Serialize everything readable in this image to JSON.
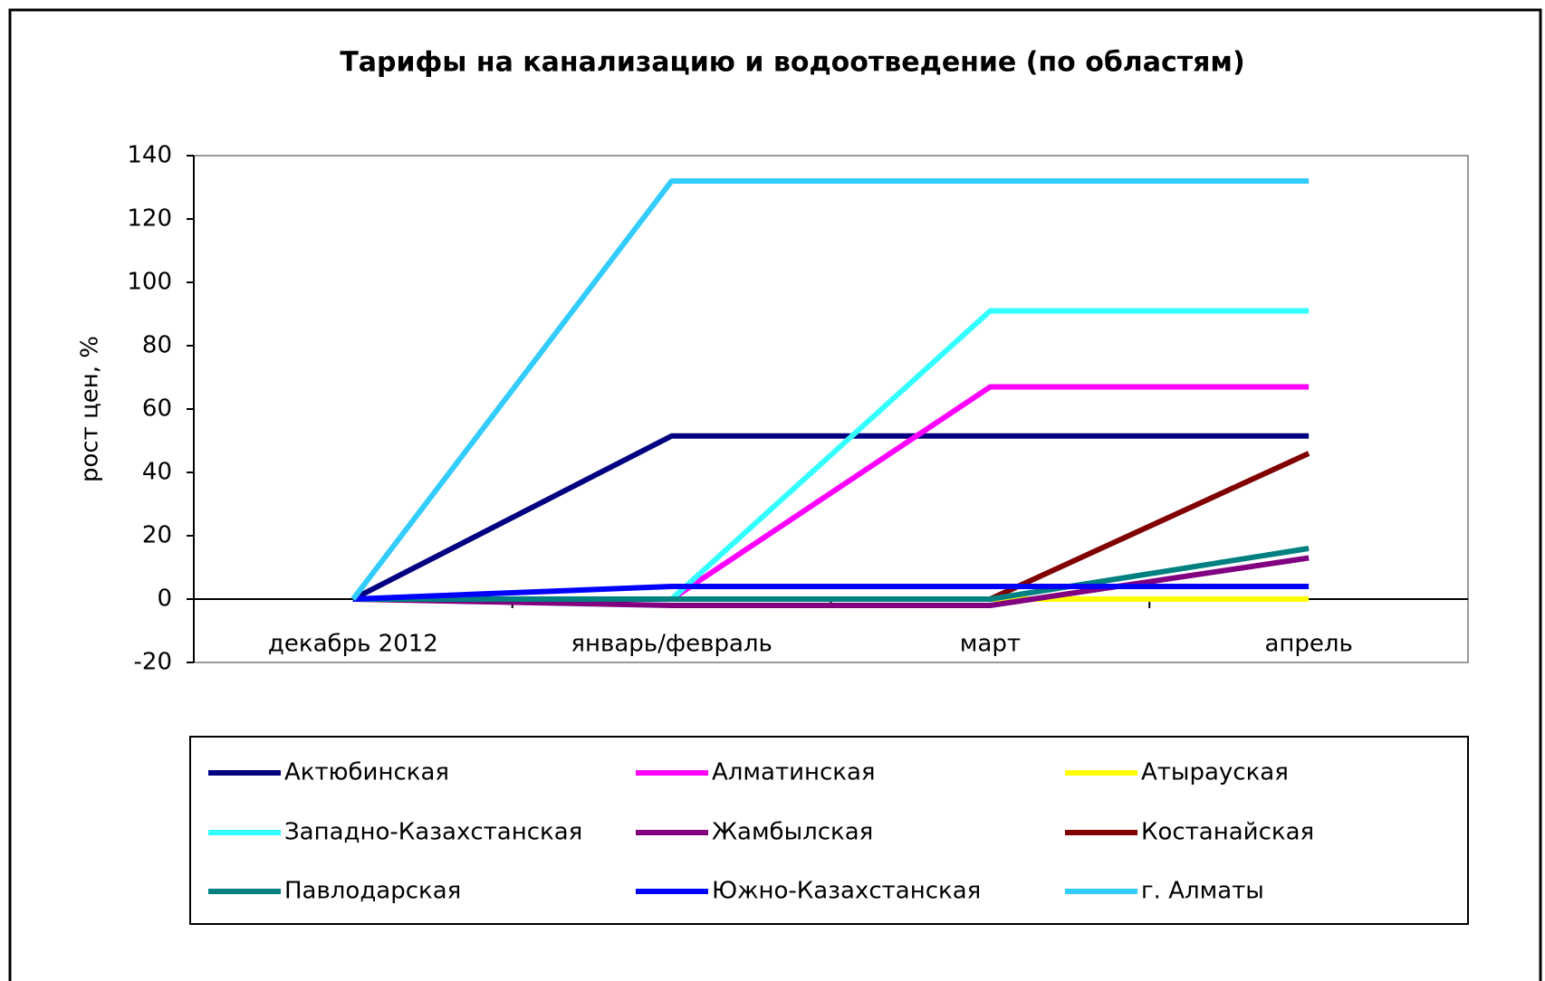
{
  "chart_data": {
    "type": "line",
    "title": "Тарифы на канализацию и водоотведение (по областям)",
    "y_label": "рост цен, %",
    "categories": [
      "декабрь 2012",
      "январь/февраль",
      "март",
      "апрель"
    ],
    "ylim": [
      -20,
      140
    ],
    "yticks": [
      -20,
      0,
      20,
      40,
      60,
      80,
      100,
      120,
      140
    ],
    "grid": false,
    "legend": "bottom",
    "series": [
      {
        "name": "Актюбинская",
        "color": "#000080",
        "values": [
          0,
          51.5,
          51.5,
          51.5
        ]
      },
      {
        "name": "Алматинская",
        "color": "#ff00ff",
        "values": [
          0,
          0,
          67,
          67
        ]
      },
      {
        "name": "Атырауская",
        "color": "#ffff00",
        "values": [
          0,
          0,
          0,
          0
        ]
      },
      {
        "name": "Западно-Казахстанская",
        "color": "#33ffff",
        "values": [
          0,
          0,
          91,
          91
        ]
      },
      {
        "name": "Жамбылская",
        "color": "#800080",
        "values": [
          0,
          -2,
          -2,
          13
        ]
      },
      {
        "name": "Костанайская",
        "color": "#800000",
        "values": [
          0,
          0,
          0,
          46
        ]
      },
      {
        "name": "Павлодарская",
        "color": "#008080",
        "values": [
          0,
          0,
          0,
          16
        ]
      },
      {
        "name": "Южно-Казахстанская",
        "color": "#0000ff",
        "values": [
          0,
          4,
          4,
          4
        ]
      },
      {
        "name": "г. Алматы",
        "color": "#33ccff",
        "values": [
          0,
          132,
          132,
          132
        ]
      }
    ]
  }
}
